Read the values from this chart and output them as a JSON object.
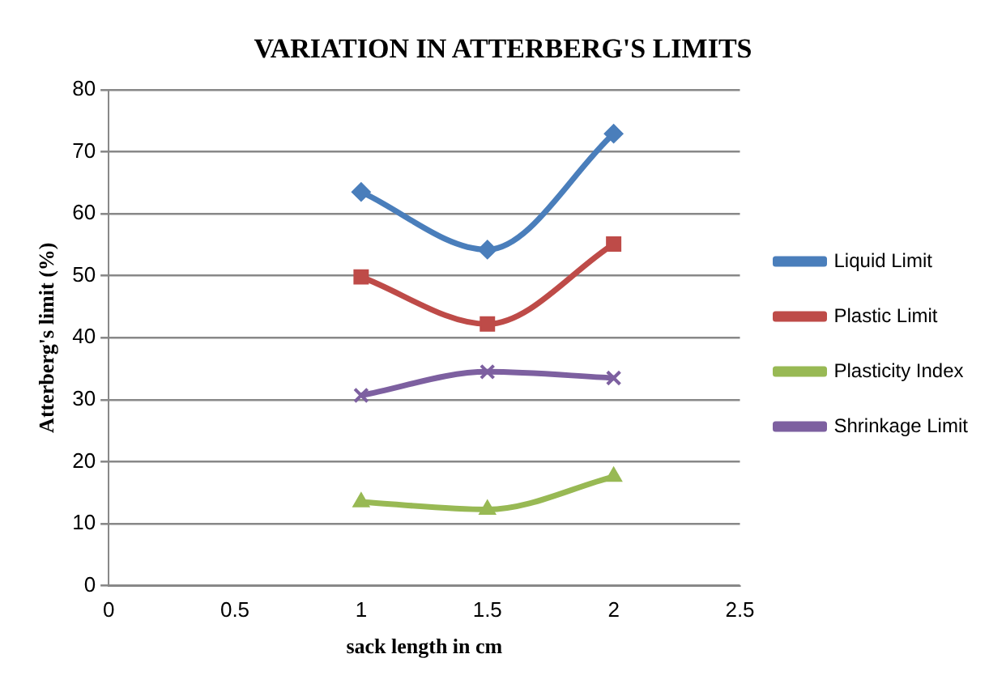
{
  "chart_data": {
    "type": "line",
    "title": "VARIATION IN ATTERBERG'S LIMITS",
    "xlabel": "sack length in cm",
    "ylabel": "Atterberg's limit (%)",
    "x": [
      1,
      1.5,
      2
    ],
    "xlim": [
      0,
      2.5
    ],
    "xticks": [
      0,
      0.5,
      1,
      1.5,
      2,
      2.5
    ],
    "ylim": [
      0,
      80
    ],
    "yticks": [
      0,
      10,
      20,
      30,
      40,
      50,
      60,
      70,
      80
    ],
    "grid": "y",
    "legend": "right",
    "series": [
      {
        "name": "Liquid Limit",
        "color": "#4a7ebb",
        "marker": "diamond",
        "values": [
          63.5,
          54.2,
          72.9
        ]
      },
      {
        "name": "Plastic Limit",
        "color": "#be4b48",
        "marker": "square",
        "values": [
          49.8,
          42.2,
          55.1
        ]
      },
      {
        "name": "Plasticity Index",
        "color": "#98b954",
        "marker": "triangle",
        "values": [
          13.5,
          12.3,
          17.6
        ]
      },
      {
        "name": "Shrinkage Limit",
        "color": "#7d60a0",
        "marker": "cross",
        "values": [
          30.7,
          34.5,
          33.5
        ]
      }
    ]
  }
}
